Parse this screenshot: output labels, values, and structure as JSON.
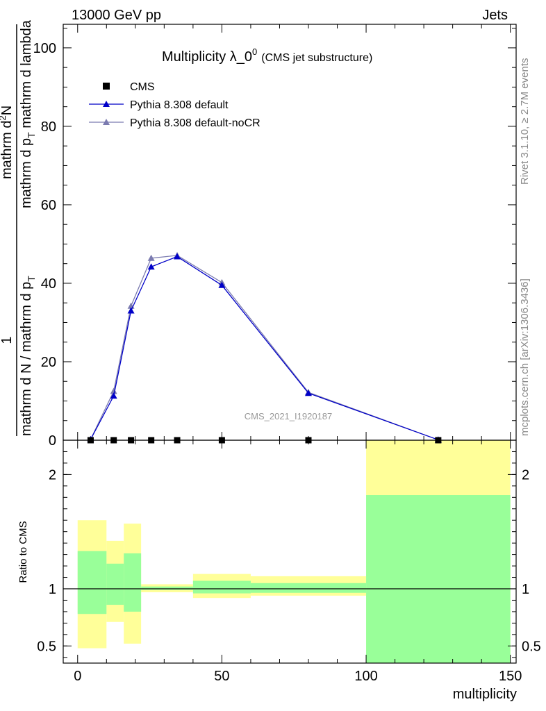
{
  "header": {
    "left": "13000 GeV pp",
    "right": "Jets"
  },
  "side_labels": {
    "rivet": "Rivet 3.1.10, ≥ 2.7M events",
    "mcplots": "mcplots.cern.ch [arXiv:1306.3436]"
  },
  "watermark": "CMS_2021_I1920187",
  "chart_data": [
    {
      "type": "line",
      "title": {
        "main": "Multiplicity λ_0",
        "superscript": "0",
        "sub": "(CMS jet substructure)"
      },
      "ylabel": {
        "numerator": "1",
        "denominator": "mathrm d N / mathrm d p",
        "num2": "mathrm d",
        "num2_sup": "2",
        "num2_rest": "N",
        "den2": "mathrm d p",
        "den2_sub": "T",
        "den2_rest": " mathrm d lambda",
        "frac1_den_sub": "T",
        "frac1_den_rest": " mathrm d N / mathrm d p"
      },
      "xlim": [
        -5,
        152
      ],
      "ylim": [
        0,
        106
      ],
      "yticks": [
        0,
        20,
        40,
        60,
        80,
        100
      ],
      "legend_position": "top-left",
      "series": [
        {
          "name": "CMS",
          "color": "#000000",
          "marker": "square",
          "x": [
            4.5,
            12.5,
            18.5,
            25.5,
            34.5,
            50,
            80,
            125
          ],
          "y": [
            0,
            0,
            0,
            0,
            0,
            0,
            0,
            0
          ]
        },
        {
          "name": "Pythia 8.308 default",
          "color": "#0000c8",
          "marker": "triangle",
          "x": [
            4.5,
            12.5,
            18.5,
            25.5,
            34.5,
            50,
            80,
            125
          ],
          "y": [
            0.2,
            11.3,
            33.0,
            44.2,
            46.8,
            39.5,
            12.0,
            0.1
          ]
        },
        {
          "name": "Pythia 8.308 default-noCR",
          "color": "#7b7bb0",
          "marker": "triangle",
          "x": [
            4.5,
            12.5,
            18.5,
            25.5,
            34.5,
            50,
            80,
            125
          ],
          "y": [
            0.2,
            12.5,
            34.2,
            46.4,
            47.1,
            40.2,
            12.2,
            0.1
          ]
        }
      ]
    },
    {
      "type": "bar",
      "ylabel": "Ratio to CMS",
      "xlabel": "multiplicity",
      "xlim": [
        -5,
        152
      ],
      "ylim": [
        0.35,
        2.3
      ],
      "xticks": [
        0,
        50,
        100,
        150
      ],
      "yticks": [
        0.5,
        1,
        2
      ],
      "reference_line": 1,
      "bins": [
        {
          "x0": 0,
          "x1": 10,
          "yellow": [
            0.48,
            1.6
          ],
          "green": [
            0.78,
            1.33
          ]
        },
        {
          "x0": 10,
          "x1": 16,
          "yellow": [
            0.71,
            1.42
          ],
          "green": [
            0.86,
            1.22
          ]
        },
        {
          "x0": 16,
          "x1": 22,
          "yellow": [
            0.52,
            1.57
          ],
          "green": [
            0.8,
            1.31
          ]
        },
        {
          "x0": 22,
          "x1": 40,
          "yellow": [
            0.97,
            1.04
          ],
          "green": [
            0.99,
            1.02
          ]
        },
        {
          "x0": 40,
          "x1": 60,
          "yellow": [
            0.92,
            1.13
          ],
          "green": [
            0.96,
            1.07
          ]
        },
        {
          "x0": 60,
          "x1": 100,
          "yellow": [
            0.94,
            1.11
          ],
          "green": [
            0.965,
            1.05
          ]
        },
        {
          "x0": 100,
          "x1": 150,
          "yellow": [
            0.35,
            2.3
          ],
          "green": [
            0.35,
            1.82
          ]
        }
      ],
      "colors": {
        "yellow": "#ffff99",
        "green": "#99ff99"
      }
    }
  ]
}
